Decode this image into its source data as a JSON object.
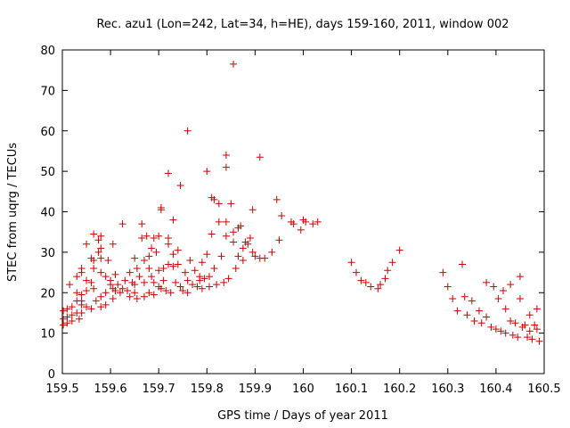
{
  "chart_data": {
    "type": "scatter",
    "title": "Rec. azu1 (Lon=242, Lat=34, h=HE), days 159-160, 2011, window 002",
    "xlabel": "GPS time / Days of year 2011",
    "ylabel": "STEC from uqrg / TECUs",
    "xlim": [
      159.5,
      160.5
    ],
    "ylim": [
      0,
      80
    ],
    "xticks": [
      "159.5",
      "159.6",
      "159.7",
      "159.8",
      "159.9",
      "160",
      "160.1",
      "160.2",
      "160.3",
      "160.4",
      "160.5"
    ],
    "yticks": [
      "0",
      "10",
      "20",
      "30",
      "40",
      "50",
      "60",
      "70",
      "80"
    ],
    "grid": false,
    "marker": "+",
    "color": "#cc0000",
    "points": [
      [
        159.502,
        15.5
      ],
      [
        159.502,
        13.5
      ],
      [
        159.502,
        12.0
      ],
      [
        159.51,
        16.0
      ],
      [
        159.51,
        14.0
      ],
      [
        159.51,
        12.5
      ],
      [
        159.515,
        22.0
      ],
      [
        159.52,
        16.5
      ],
      [
        159.52,
        14.5
      ],
      [
        159.52,
        13.0
      ],
      [
        159.53,
        24.0
      ],
      [
        159.53,
        20.0
      ],
      [
        159.53,
        18.0
      ],
      [
        159.53,
        15.0
      ],
      [
        159.535,
        13.5
      ],
      [
        159.54,
        26.0
      ],
      [
        159.54,
        25.0
      ],
      [
        159.54,
        19.5
      ],
      [
        159.54,
        18.0
      ],
      [
        159.54,
        17.0
      ],
      [
        159.54,
        15.0
      ],
      [
        159.55,
        32.0
      ],
      [
        159.55,
        23.0
      ],
      [
        159.55,
        20.5
      ],
      [
        159.55,
        16.5
      ],
      [
        159.56,
        28.5
      ],
      [
        159.56,
        22.5
      ],
      [
        159.56,
        16.0
      ],
      [
        159.565,
        34.5
      ],
      [
        159.565,
        28.0
      ],
      [
        159.565,
        26.0
      ],
      [
        159.565,
        21.0
      ],
      [
        159.57,
        18.0
      ],
      [
        159.575,
        33.0
      ],
      [
        159.575,
        30.0
      ],
      [
        159.58,
        34.0
      ],
      [
        159.58,
        31.0
      ],
      [
        159.58,
        28.5
      ],
      [
        159.58,
        25.0
      ],
      [
        159.58,
        19.0
      ],
      [
        159.58,
        16.5
      ],
      [
        159.59,
        24.0
      ],
      [
        159.59,
        20.0
      ],
      [
        159.59,
        17.0
      ],
      [
        159.595,
        28.0
      ],
      [
        159.6,
        23.0
      ],
      [
        159.6,
        22.0
      ],
      [
        159.605,
        32.0
      ],
      [
        159.605,
        21.0
      ],
      [
        159.605,
        18.5
      ],
      [
        159.61,
        24.5
      ],
      [
        159.61,
        20.5
      ],
      [
        159.615,
        22.0
      ],
      [
        159.62,
        20.0
      ],
      [
        159.625,
        37.0
      ],
      [
        159.625,
        21.0
      ],
      [
        159.63,
        23.0
      ],
      [
        159.635,
        20.5
      ],
      [
        159.64,
        25.0
      ],
      [
        159.64,
        19.0
      ],
      [
        159.645,
        22.5
      ],
      [
        159.65,
        28.5
      ],
      [
        159.65,
        22.0
      ],
      [
        159.65,
        20.0
      ],
      [
        159.655,
        26.0
      ],
      [
        159.655,
        18.5
      ],
      [
        159.66,
        24.0
      ],
      [
        159.665,
        33.5
      ],
      [
        159.665,
        37.0
      ],
      [
        159.67,
        28.0
      ],
      [
        159.67,
        22.5
      ],
      [
        159.67,
        19.0
      ],
      [
        159.675,
        34.0
      ],
      [
        159.68,
        29.0
      ],
      [
        159.68,
        26.0
      ],
      [
        159.68,
        20.0
      ],
      [
        159.685,
        31.0
      ],
      [
        159.685,
        24.0
      ],
      [
        159.69,
        33.5
      ],
      [
        159.69,
        22.5
      ],
      [
        159.69,
        19.5
      ],
      [
        159.695,
        30.0
      ],
      [
        159.7,
        34.0
      ],
      [
        159.7,
        25.5
      ],
      [
        159.7,
        21.5
      ],
      [
        159.705,
        41.0
      ],
      [
        159.705,
        40.5
      ],
      [
        159.705,
        21.0
      ],
      [
        159.71,
        26.0
      ],
      [
        159.71,
        23.0
      ],
      [
        159.715,
        20.5
      ],
      [
        159.72,
        49.5
      ],
      [
        159.72,
        33.5
      ],
      [
        159.72,
        32.0
      ],
      [
        159.72,
        27.0
      ],
      [
        159.725,
        20.0
      ],
      [
        159.73,
        38.0
      ],
      [
        159.73,
        29.5
      ],
      [
        159.73,
        26.5
      ],
      [
        159.735,
        22.5
      ],
      [
        159.74,
        30.5
      ],
      [
        159.74,
        27.0
      ],
      [
        159.745,
        46.5
      ],
      [
        159.745,
        21.5
      ],
      [
        159.75,
        20.5
      ],
      [
        159.755,
        25.0
      ],
      [
        159.76,
        60.0
      ],
      [
        159.76,
        23.0
      ],
      [
        159.76,
        20.0
      ],
      [
        159.765,
        28.0
      ],
      [
        159.77,
        22.0
      ],
      [
        159.775,
        25.5
      ],
      [
        159.78,
        21.5
      ],
      [
        159.785,
        24.0
      ],
      [
        159.785,
        23.0
      ],
      [
        159.79,
        21.0
      ],
      [
        159.79,
        27.5
      ],
      [
        159.795,
        23.5
      ],
      [
        159.8,
        50.0
      ],
      [
        159.8,
        29.5
      ],
      [
        159.805,
        24.0
      ],
      [
        159.805,
        21.5
      ],
      [
        159.81,
        43.5
      ],
      [
        159.81,
        34.5
      ],
      [
        159.815,
        43.0
      ],
      [
        159.815,
        26.0
      ],
      [
        159.82,
        22.0
      ],
      [
        159.825,
        42.0
      ],
      [
        159.825,
        37.5
      ],
      [
        159.83,
        29.0
      ],
      [
        159.835,
        22.5
      ],
      [
        159.84,
        54.0
      ],
      [
        159.84,
        51.0
      ],
      [
        159.84,
        34.0
      ],
      [
        159.84,
        37.5
      ],
      [
        159.845,
        23.5
      ],
      [
        159.85,
        42.0
      ],
      [
        159.855,
        76.5
      ],
      [
        159.855,
        35.0
      ],
      [
        159.855,
        32.5
      ],
      [
        159.86,
        26.0
      ],
      [
        159.865,
        36.0
      ],
      [
        159.865,
        29.0
      ],
      [
        159.87,
        36.5
      ],
      [
        159.875,
        31.0
      ],
      [
        159.875,
        28.0
      ],
      [
        159.88,
        32.5
      ],
      [
        159.885,
        32.0
      ],
      [
        159.89,
        33.5
      ],
      [
        159.895,
        40.5
      ],
      [
        159.895,
        30.0
      ],
      [
        159.9,
        29.0
      ],
      [
        159.91,
        53.5
      ],
      [
        159.91,
        28.5
      ],
      [
        159.92,
        28.5
      ],
      [
        159.935,
        30.0
      ],
      [
        159.945,
        43.0
      ],
      [
        159.95,
        33.0
      ],
      [
        159.955,
        39.0
      ],
      [
        159.975,
        37.5
      ],
      [
        159.98,
        37.0
      ],
      [
        159.995,
        35.5
      ],
      [
        160.0,
        38.0
      ],
      [
        160.005,
        37.5
      ],
      [
        160.02,
        37.0
      ],
      [
        160.03,
        37.5
      ],
      [
        160.1,
        27.5
      ],
      [
        160.11,
        25.0
      ],
      [
        160.12,
        23.0
      ],
      [
        160.13,
        22.5
      ],
      [
        160.14,
        21.5
      ],
      [
        160.155,
        21.0
      ],
      [
        160.16,
        22.0
      ],
      [
        160.17,
        23.5
      ],
      [
        160.175,
        25.5
      ],
      [
        160.185,
        27.5
      ],
      [
        160.2,
        30.5
      ],
      [
        160.29,
        25.0
      ],
      [
        160.3,
        21.5
      ],
      [
        160.31,
        18.5
      ],
      [
        160.32,
        15.5
      ],
      [
        160.33,
        27.0
      ],
      [
        160.335,
        19.0
      ],
      [
        160.34,
        14.5
      ],
      [
        160.35,
        18.0
      ],
      [
        160.355,
        13.0
      ],
      [
        160.365,
        15.5
      ],
      [
        160.37,
        12.5
      ],
      [
        160.38,
        22.5
      ],
      [
        160.38,
        14.0
      ],
      [
        160.39,
        11.5
      ],
      [
        160.395,
        21.5
      ],
      [
        160.4,
        11.0
      ],
      [
        160.405,
        18.5
      ],
      [
        160.41,
        10.5
      ],
      [
        160.415,
        20.5
      ],
      [
        160.42,
        16.0
      ],
      [
        160.42,
        10.0
      ],
      [
        160.43,
        22.0
      ],
      [
        160.43,
        13.0
      ],
      [
        160.435,
        9.5
      ],
      [
        160.44,
        12.5
      ],
      [
        160.445,
        9.0
      ],
      [
        160.45,
        24.0
      ],
      [
        160.45,
        18.5
      ],
      [
        160.455,
        11.5
      ],
      [
        160.46,
        12.0
      ],
      [
        160.465,
        9.0
      ],
      [
        160.47,
        14.5
      ],
      [
        160.47,
        10.5
      ],
      [
        160.475,
        8.5
      ],
      [
        160.48,
        12.0
      ],
      [
        160.485,
        16.0
      ],
      [
        160.485,
        11.0
      ],
      [
        160.49,
        8.0
      ]
    ]
  }
}
